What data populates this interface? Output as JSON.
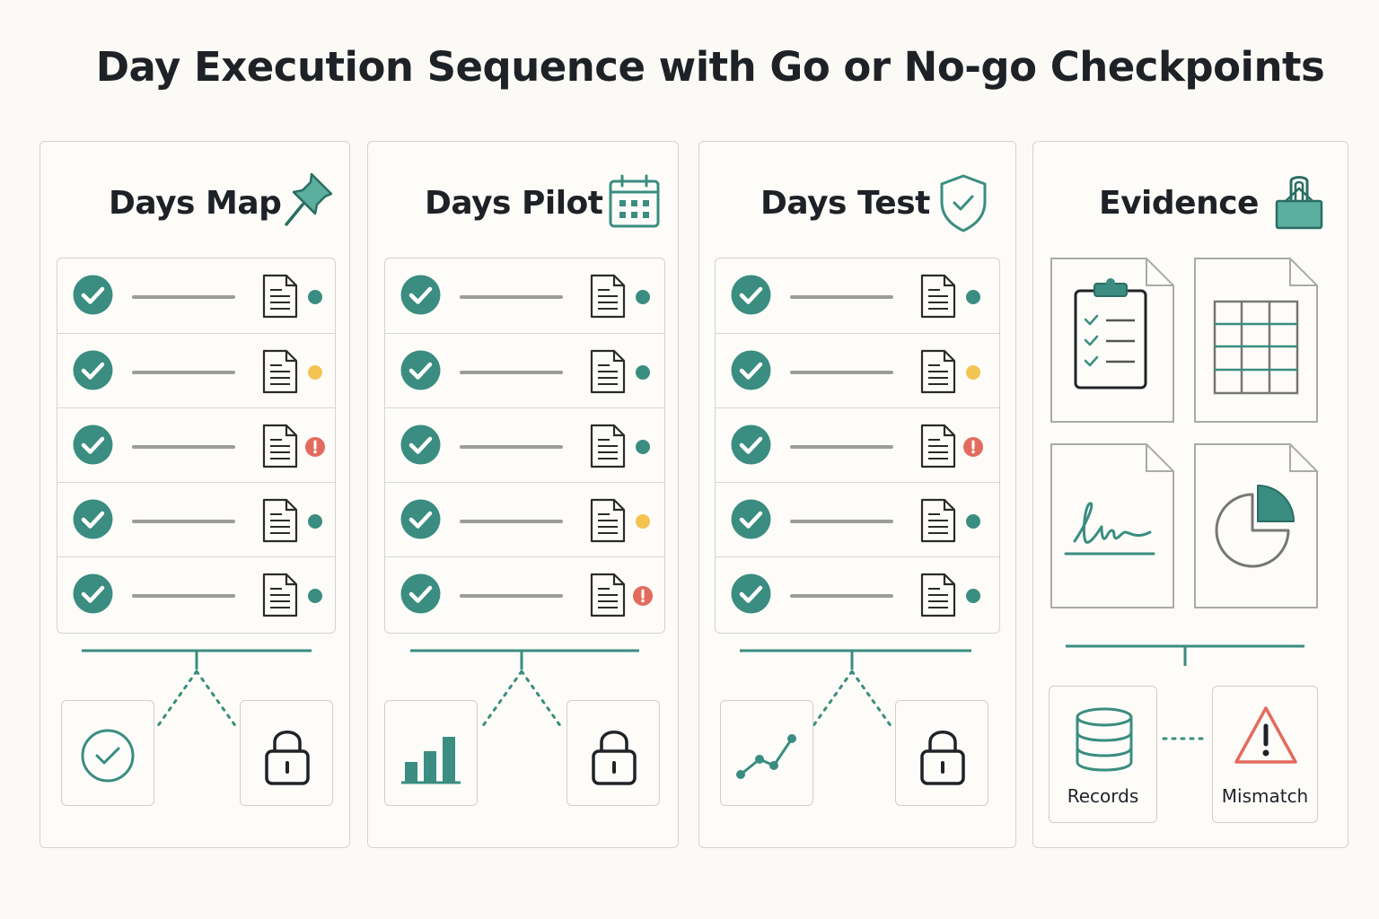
{
  "title": "Day Execution Sequence with Go or No-go Checkpoints",
  "colors": {
    "teal": "#3a8d80",
    "warn_yellow": "#f4c453",
    "error_red": "#e36b5e",
    "border": "#d3d3d0",
    "background": "#fcfaf6"
  },
  "panels": [
    {
      "title": "Days Map",
      "icon": "pushpin-icon",
      "rows": [
        "ok",
        "warning",
        "error",
        "ok",
        "ok"
      ],
      "checkpoints": [
        "check-circle-icon",
        "padlock-icon"
      ]
    },
    {
      "title": "Days Pilot",
      "icon": "calendar-icon",
      "rows": [
        "ok",
        "ok",
        "ok",
        "warning",
        "error"
      ],
      "checkpoints": [
        "bar-chart-icon",
        "padlock-icon"
      ]
    },
    {
      "title": "Days Test",
      "icon": "shield-check-icon",
      "rows": [
        "ok",
        "warning",
        "error",
        "ok",
        "ok"
      ],
      "checkpoints": [
        "line-chart-icon",
        "padlock-icon"
      ]
    }
  ],
  "evidence": {
    "title": "Evidence",
    "icon": "binder-clip-icon",
    "documents": [
      "clipboard-checklist-icon",
      "spreadsheet-icon",
      "signature-icon",
      "pie-chart-icon"
    ],
    "records_label": "Records",
    "mismatch_label": "Mismatch"
  }
}
